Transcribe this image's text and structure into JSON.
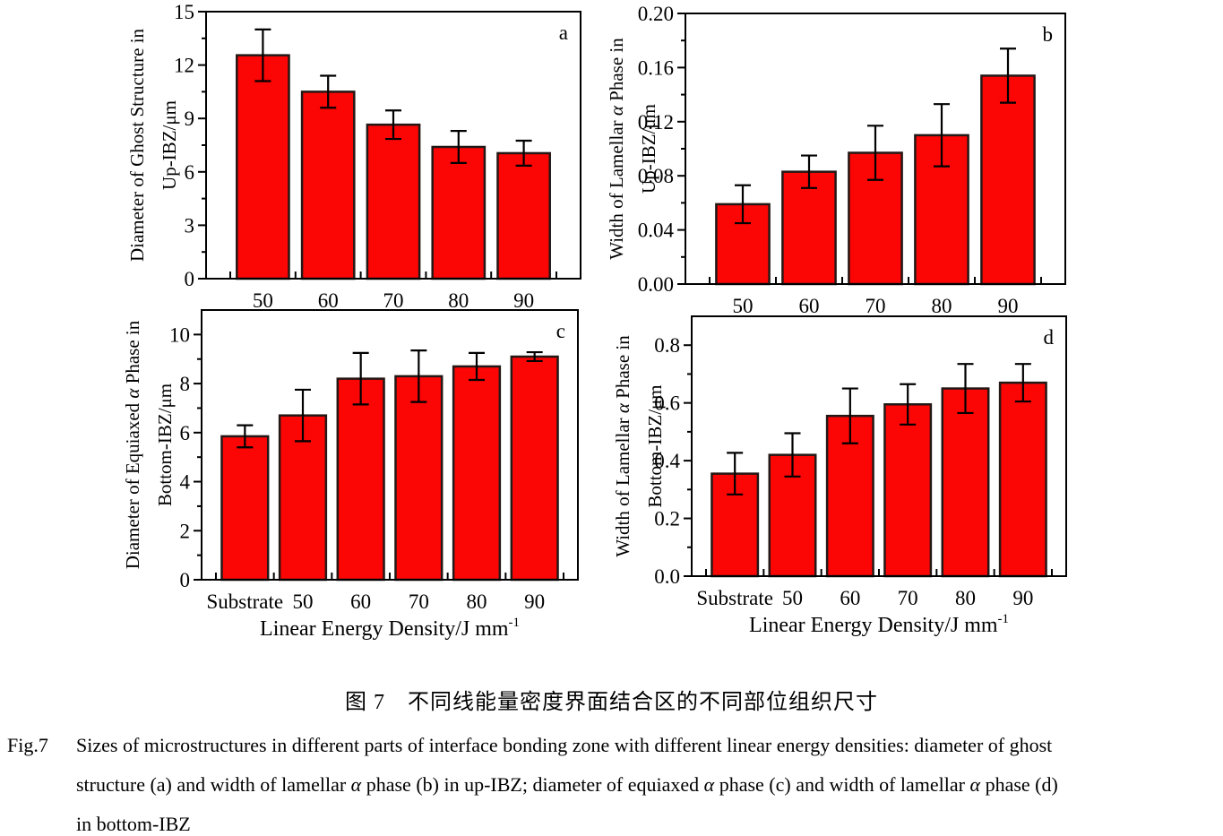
{
  "figure": {
    "caption_zh": "图 7　不同线能量密度界面结合区的不同部位组织尺寸",
    "caption_en_label": "Fig.7",
    "caption_en_lines": [
      "Sizes of microstructures in different parts of interface bonding zone with different linear energy densities: diameter of ghost",
      "structure (a) and width of lamellar α phase (b) in up-IBZ; diameter of equiaxed α phase (c) and width of lamellar α phase (d)",
      "in bottom-IBZ"
    ]
  },
  "style": {
    "bar_fill": "#fb0505",
    "bar_border": "#231815",
    "axis_color": "#000000",
    "error_bar_color": "#000000",
    "text_color": "#000000"
  },
  "xlabel": {
    "text": "Linear Energy Density/J mm",
    "superscript": "-1"
  },
  "chart_data": [
    {
      "type": "bar",
      "panel": "a",
      "ylabel_lines": [
        "Diameter of Ghost Structure in",
        "Up-IBZ/μm"
      ],
      "categories": [
        "50",
        "60",
        "70",
        "80",
        "90"
      ],
      "values": [
        12.55,
        10.5,
        8.65,
        7.4,
        7.05
      ],
      "errors": [
        1.45,
        0.9,
        0.8,
        0.9,
        0.7
      ],
      "ylim": [
        0,
        15
      ],
      "yticks": [
        0,
        3,
        6,
        9,
        12,
        15
      ],
      "ytick_decimals": 0,
      "show_xlabel": false,
      "grid": false,
      "legend": "none"
    },
    {
      "type": "bar",
      "panel": "b",
      "ylabel_lines": [
        "Width of Lamellar α Phase in",
        "Up-IBZ/μm"
      ],
      "categories": [
        "50",
        "60",
        "70",
        "80",
        "90"
      ],
      "values": [
        0.059,
        0.083,
        0.097,
        0.11,
        0.154
      ],
      "errors": [
        0.014,
        0.012,
        0.02,
        0.023,
        0.02
      ],
      "ylim": [
        0,
        0.2
      ],
      "yticks": [
        0,
        0.04,
        0.08,
        0.12,
        0.16,
        0.2
      ],
      "ytick_decimals": 2,
      "show_xlabel": false,
      "grid": false,
      "legend": "none"
    },
    {
      "type": "bar",
      "panel": "c",
      "ylabel_lines": [
        "Diameter of Equiaxed α Phase in",
        "Bottom-IBZ/μm"
      ],
      "categories": [
        "Substrate",
        "50",
        "60",
        "70",
        "80",
        "90"
      ],
      "values": [
        5.85,
        6.7,
        8.2,
        8.3,
        8.7,
        9.1
      ],
      "errors": [
        0.45,
        1.05,
        1.05,
        1.05,
        0.55,
        0.18
      ],
      "ylim": [
        0,
        11
      ],
      "yticks": [
        0,
        2,
        4,
        6,
        8,
        10
      ],
      "ytick_decimals": 0,
      "show_xlabel": true,
      "grid": false,
      "legend": "none"
    },
    {
      "type": "bar",
      "panel": "d",
      "ylabel_lines": [
        "Width of Lamellar α Phase in",
        "Bottom-IBZ/μm"
      ],
      "categories": [
        "Substrate",
        "50",
        "60",
        "70",
        "80",
        "90"
      ],
      "values": [
        0.355,
        0.42,
        0.555,
        0.595,
        0.65,
        0.67
      ],
      "errors": [
        0.072,
        0.075,
        0.095,
        0.07,
        0.085,
        0.065
      ],
      "ylim": [
        0,
        0.9
      ],
      "yticks": [
        0,
        0.2,
        0.4,
        0.6,
        0.8
      ],
      "ytick_decimals": 1,
      "show_xlabel": true,
      "grid": false,
      "legend": "none"
    }
  ]
}
